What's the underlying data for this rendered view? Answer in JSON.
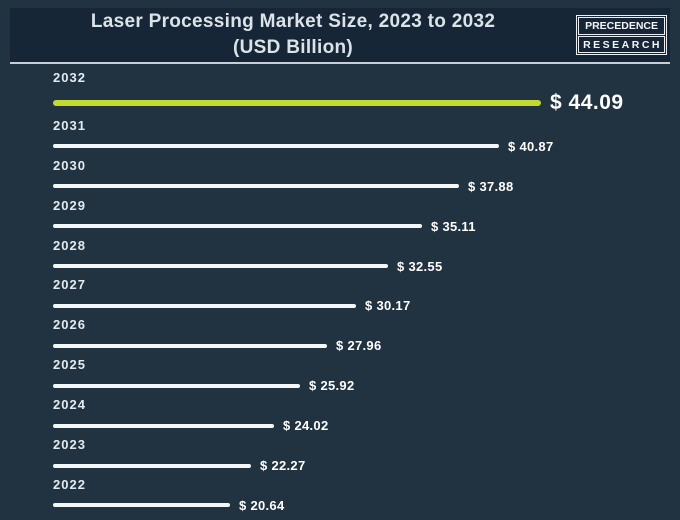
{
  "header": {
    "title_line1": "Laser Processing Market Size, 2023 to 2032",
    "title_line2": "(USD Billion)",
    "logo": {
      "line1": "PRECEDENCE",
      "line2": "RESEARCH"
    }
  },
  "chart_data": {
    "type": "bar",
    "orientation": "horizontal",
    "title": "Laser Processing Market Size, 2023 to 2032 (USD Billion)",
    "unit": "USD Billion",
    "value_prefix": "$",
    "categories": [
      "2032",
      "2031",
      "2030",
      "2029",
      "2028",
      "2027",
      "2026",
      "2025",
      "2024",
      "2023",
      "2022"
    ],
    "values": [
      44.09,
      40.87,
      37.88,
      35.11,
      32.55,
      30.17,
      27.96,
      25.92,
      24.02,
      22.27,
      20.64
    ],
    "value_labels": [
      "$ 44.09",
      "$ 40.87",
      "$ 37.88",
      "$ 35.11",
      "$ 32.55",
      "$ 30.17",
      "$ 27.96",
      "$ 25.92",
      "$ 24.02",
      "$ 22.27",
      "$ 20.64"
    ],
    "highlight_category": "2032",
    "axis": {
      "x_min": 0,
      "x_max": 44.09,
      "gridlines": false,
      "legend": false
    },
    "colors": {
      "background": "#213240",
      "title_band": "#162636",
      "separator": "#c5cfd5",
      "bar": "#f3f7f8",
      "highlight_bar": "#c4d832",
      "value_text": "#ffffff",
      "year_text": "#e4ebf0"
    }
  }
}
